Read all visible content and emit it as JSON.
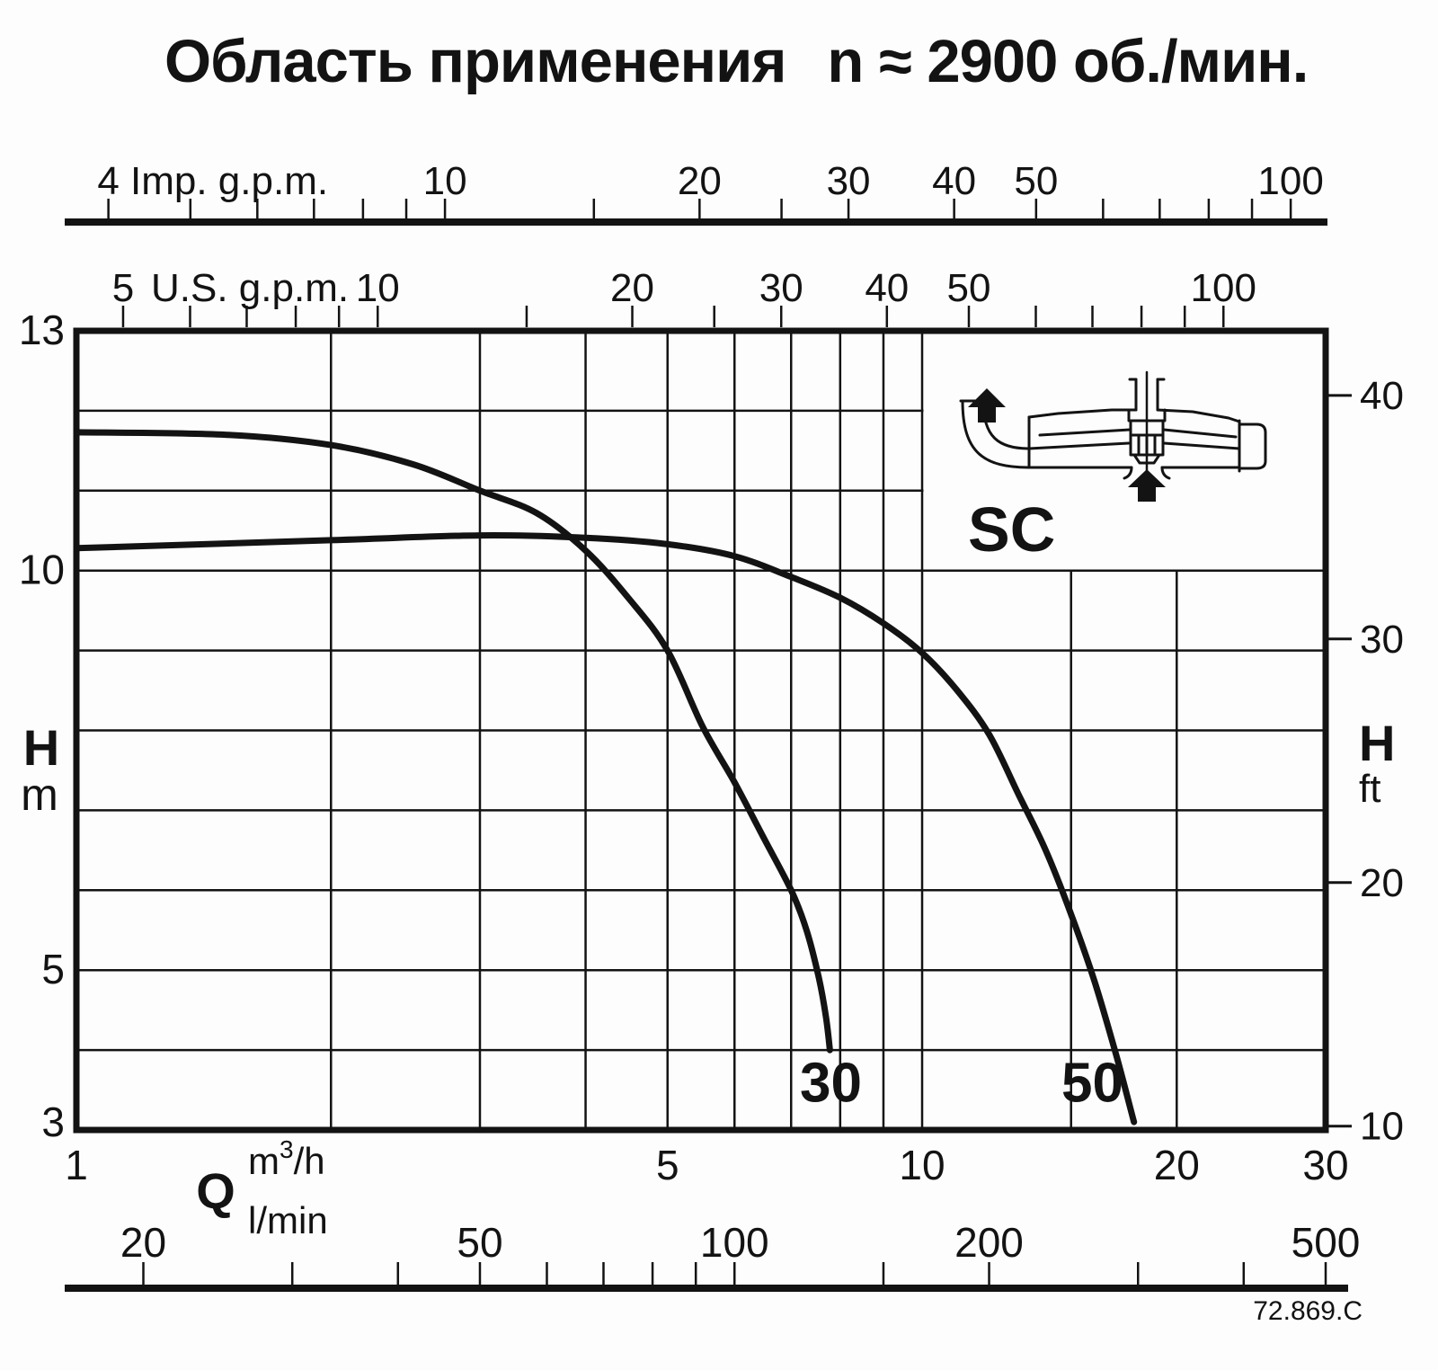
{
  "title": {
    "part1": "Область применения",
    "part2": "n ≈ 2900 об./мин."
  },
  "footer_ref": "72.869.C",
  "inset": {
    "label": "SC",
    "icon": "pump-cross-section"
  },
  "axes": {
    "imp": {
      "label": "Imp. g.p.m.",
      "units_per_m3h": 3.66615,
      "ticks": [
        4,
        5,
        6,
        7,
        8,
        9,
        10,
        15,
        20,
        25,
        30,
        40,
        50,
        60,
        70,
        80,
        90,
        100
      ],
      "labeled": [
        4,
        10,
        20,
        30,
        40,
        50,
        100
      ]
    },
    "us": {
      "label": "U.S. g.p.m.",
      "units_per_m3h": 4.40287,
      "ticks": [
        5,
        6,
        7,
        8,
        9,
        10,
        15,
        20,
        25,
        30,
        40,
        50,
        60,
        70,
        80,
        90,
        100
      ],
      "labeled": [
        5,
        10,
        20,
        30,
        40,
        50,
        100
      ]
    },
    "m3h": {
      "label": "m³/h",
      "q_symbol": "Q",
      "labeled": [
        1,
        5,
        10,
        20,
        30
      ],
      "gridlines": [
        2,
        3,
        4,
        5,
        6,
        7,
        8,
        9,
        10,
        15,
        20
      ]
    },
    "lmin": {
      "label": "l/min",
      "units_per_m3h": 16.6667,
      "ticks": [
        20,
        30,
        40,
        50,
        60,
        70,
        80,
        90,
        100,
        150,
        200,
        300,
        400,
        500
      ],
      "labeled": [
        20,
        50,
        100,
        200,
        500
      ]
    },
    "h": {
      "symbol": "H",
      "unit_m": "m",
      "unit_ft": "ft",
      "labeled_m": [
        13,
        10,
        5,
        3
      ],
      "gridlines_m": [
        4,
        5,
        6,
        7,
        8,
        9,
        10,
        11,
        12
      ],
      "ft_ticks": [
        40,
        30,
        20,
        10
      ],
      "ft_per_m": 3.28084
    }
  },
  "chart_data": {
    "type": "line",
    "title": "Область применения n ≈ 2900 об./мин.",
    "xlabel": "Q (m³/h, l/min, U.S. g.p.m., Imp. g.p.m.)",
    "ylabel": "H (m, ft)",
    "x_scale": "log",
    "y_scale": "linear",
    "xlim": [
      1,
      30
    ],
    "ylim": [
      3,
      13
    ],
    "grid": true,
    "legend_position": "on-curve",
    "series": [
      {
        "name": "30",
        "points_q_h": [
          [
            1,
            11.73
          ],
          [
            1.5,
            11.7
          ],
          [
            2,
            11.57
          ],
          [
            2.5,
            11.33
          ],
          [
            3,
            11.0
          ],
          [
            3.5,
            10.72
          ],
          [
            4,
            10.25
          ],
          [
            4.5,
            9.65
          ],
          [
            5,
            9.0
          ],
          [
            5.5,
            8.05
          ],
          [
            6,
            7.35
          ],
          [
            6.5,
            6.65
          ],
          [
            7,
            6.0
          ],
          [
            7.3,
            5.5
          ],
          [
            7.55,
            4.9
          ],
          [
            7.7,
            4.4
          ],
          [
            7.78,
            4.0
          ]
        ],
        "label_at_q_h": [
          7.8,
          3.6
        ]
      },
      {
        "name": "50",
        "points_q_h": [
          [
            1,
            10.28
          ],
          [
            2,
            10.38
          ],
          [
            3,
            10.44
          ],
          [
            4,
            10.41
          ],
          [
            5,
            10.33
          ],
          [
            6,
            10.18
          ],
          [
            7,
            9.92
          ],
          [
            8,
            9.66
          ],
          [
            9,
            9.34
          ],
          [
            10,
            8.97
          ],
          [
            11,
            8.5
          ],
          [
            12,
            7.95
          ],
          [
            13,
            7.2
          ],
          [
            14,
            6.5
          ],
          [
            15,
            5.7
          ],
          [
            16,
            4.85
          ],
          [
            17,
            3.9
          ],
          [
            17.8,
            3.1
          ]
        ],
        "label_at_q_h": [
          15.9,
          3.6
        ]
      }
    ]
  }
}
